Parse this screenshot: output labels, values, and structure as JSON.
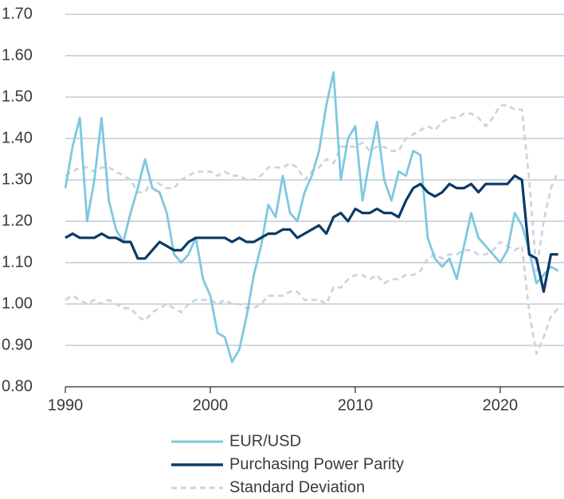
{
  "chart_data": {
    "type": "line",
    "x": [
      1990,
      1990.5,
      1991,
      1991.5,
      1992,
      1992.5,
      1993,
      1993.5,
      1994,
      1994.5,
      1995,
      1995.5,
      1996,
      1996.5,
      1997,
      1997.5,
      1998,
      1998.5,
      1999,
      1999.5,
      2000,
      2000.5,
      2001,
      2001.5,
      2002,
      2002.5,
      2003,
      2003.5,
      2004,
      2004.5,
      2005,
      2005.5,
      2006,
      2006.5,
      2007,
      2007.5,
      2008,
      2008.5,
      2009,
      2009.5,
      2010,
      2010.5,
      2011,
      2011.5,
      2012,
      2012.5,
      2013,
      2013.5,
      2014,
      2014.5,
      2015,
      2015.5,
      2016,
      2016.5,
      2017,
      2017.5,
      2018,
      2018.5,
      2019,
      2019.5,
      2020,
      2020.5,
      2021,
      2021.5,
      2022,
      2022.5,
      2023,
      2023.5,
      2024
    ],
    "series": [
      {
        "name": "EUR/USD",
        "color": "#7ec8de",
        "values": [
          1.28,
          1.38,
          1.45,
          1.2,
          1.3,
          1.45,
          1.25,
          1.18,
          1.15,
          1.22,
          1.28,
          1.35,
          1.28,
          1.27,
          1.22,
          1.12,
          1.1,
          1.12,
          1.16,
          1.06,
          1.02,
          0.93,
          0.92,
          0.86,
          0.89,
          0.97,
          1.07,
          1.14,
          1.24,
          1.21,
          1.31,
          1.22,
          1.2,
          1.27,
          1.31,
          1.37,
          1.48,
          1.56,
          1.3,
          1.4,
          1.43,
          1.25,
          1.35,
          1.44,
          1.3,
          1.25,
          1.32,
          1.31,
          1.37,
          1.36,
          1.16,
          1.11,
          1.09,
          1.11,
          1.06,
          1.14,
          1.22,
          1.16,
          1.14,
          1.12,
          1.1,
          1.13,
          1.22,
          1.19,
          1.13,
          1.05,
          1.07,
          1.09,
          1.08
        ]
      },
      {
        "name": "Purchasing Power Parity",
        "color": "#0b3a66",
        "values": [
          1.16,
          1.17,
          1.16,
          1.16,
          1.16,
          1.17,
          1.16,
          1.16,
          1.15,
          1.15,
          1.11,
          1.11,
          1.13,
          1.15,
          1.14,
          1.13,
          1.13,
          1.15,
          1.16,
          1.16,
          1.16,
          1.16,
          1.16,
          1.15,
          1.16,
          1.15,
          1.15,
          1.16,
          1.17,
          1.17,
          1.18,
          1.18,
          1.16,
          1.17,
          1.18,
          1.19,
          1.17,
          1.21,
          1.22,
          1.2,
          1.23,
          1.22,
          1.22,
          1.23,
          1.22,
          1.22,
          1.21,
          1.25,
          1.28,
          1.29,
          1.27,
          1.26,
          1.27,
          1.29,
          1.28,
          1.28,
          1.29,
          1.27,
          1.29,
          1.29,
          1.29,
          1.29,
          1.31,
          1.3,
          1.12,
          1.11,
          1.03,
          1.12,
          1.12
        ]
      },
      {
        "name": "Standard Deviation",
        "color": "#cfd4db",
        "dashed": true,
        "values": [
          1.31,
          1.32,
          1.33,
          1.33,
          1.32,
          1.33,
          1.33,
          1.32,
          1.31,
          1.3,
          1.27,
          1.27,
          1.3,
          1.29,
          1.28,
          1.28,
          1.3,
          1.31,
          1.32,
          1.32,
          1.32,
          1.31,
          1.32,
          1.31,
          1.31,
          1.3,
          1.3,
          1.31,
          1.33,
          1.33,
          1.33,
          1.34,
          1.33,
          1.3,
          1.32,
          1.33,
          1.35,
          1.34,
          1.38,
          1.38,
          1.38,
          1.39,
          1.37,
          1.38,
          1.38,
          1.37,
          1.37,
          1.4,
          1.41,
          1.42,
          1.43,
          1.42,
          1.44,
          1.45,
          1.45,
          1.46,
          1.46,
          1.45,
          1.43,
          1.45,
          1.48,
          1.48,
          1.47,
          1.47,
          1.3,
          1.08,
          1.2,
          1.28,
          1.32
        ],
        "lower": [
          1.01,
          1.02,
          1.01,
          1.0,
          1.01,
          1.0,
          1.01,
          1.0,
          0.99,
          0.99,
          0.97,
          0.96,
          0.98,
          0.99,
          1.0,
          0.99,
          0.98,
          1.0,
          1.01,
          1.01,
          1.01,
          1.0,
          1.01,
          1.0,
          1.0,
          0.99,
          0.99,
          1.0,
          1.02,
          1.02,
          1.02,
          1.03,
          1.03,
          1.01,
          1.01,
          1.01,
          1.0,
          1.04,
          1.04,
          1.06,
          1.07,
          1.07,
          1.06,
          1.07,
          1.05,
          1.06,
          1.06,
          1.07,
          1.07,
          1.08,
          1.11,
          1.12,
          1.11,
          1.12,
          1.12,
          1.13,
          1.13,
          1.12,
          1.12,
          1.13,
          1.15,
          1.14,
          1.13,
          1.14,
          0.98,
          0.88,
          0.92,
          0.97,
          0.99
        ]
      }
    ],
    "xlim": [
      1990,
      2024.4
    ],
    "xticks": [
      1990,
      2000,
      2010,
      2020
    ],
    "ylim": [
      0.8,
      1.7
    ],
    "yticks": [
      {
        "value": 0.8,
        "label": "0.80"
      },
      {
        "value": 0.9,
        "label": "0.90"
      },
      {
        "value": 1.0,
        "label": "1.00"
      },
      {
        "value": 1.1,
        "label": "1.10"
      },
      {
        "value": 1.2,
        "label": "1.20"
      },
      {
        "value": 1.3,
        "label": "1.30"
      },
      {
        "value": 1.4,
        "label": "1.40"
      },
      {
        "value": 1.5,
        "label": "1.50"
      },
      {
        "value": 1.6,
        "label": "1.60"
      },
      {
        "value": 1.7,
        "label": "1.70"
      }
    ],
    "grid": true,
    "legend": "bottom"
  }
}
